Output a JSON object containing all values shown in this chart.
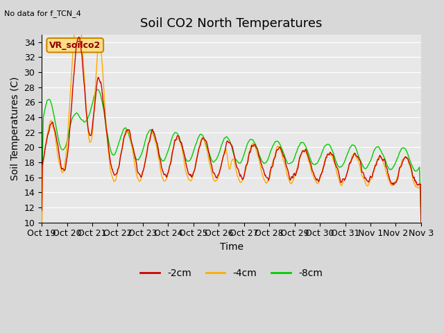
{
  "title": "Soil CO2 North Temperatures",
  "subtitle": "No data for f_TCN_4",
  "xlabel": "Time",
  "ylabel": "Soil Temperatures (C)",
  "ylim": [
    10,
    35
  ],
  "yticks": [
    10,
    12,
    14,
    16,
    18,
    20,
    22,
    24,
    26,
    28,
    30,
    32,
    34
  ],
  "x_tick_days": [
    0,
    1,
    2,
    3,
    4,
    5,
    6,
    7,
    8,
    9,
    10,
    11,
    12,
    13,
    14,
    15
  ],
  "x_labels": [
    "Oct 19",
    "Oct 20",
    "Oct 21",
    "Oct 22",
    "Oct 23",
    "Oct 24",
    "Oct 25",
    "Oct 26",
    "Oct 27",
    "Oct 28",
    "Oct 29",
    "Oct 30",
    "Oct 31",
    "Nov 1",
    "Nov 2",
    "Nov 3"
  ],
  "legend_label_2cm": "-2cm",
  "legend_label_4cm": "-4cm",
  "legend_label_8cm": "-8cm",
  "color_2cm": "#cc0000",
  "color_4cm": "#ffaa00",
  "color_8cm": "#00cc00",
  "annotation_text": "VR_soilco2",
  "bg_color": "#e8e8e8",
  "fig_bg_color": "#d8d8d8",
  "title_fontsize": 13,
  "label_fontsize": 10,
  "tick_fontsize": 9,
  "n_days": 15,
  "pts_per_day": 48
}
